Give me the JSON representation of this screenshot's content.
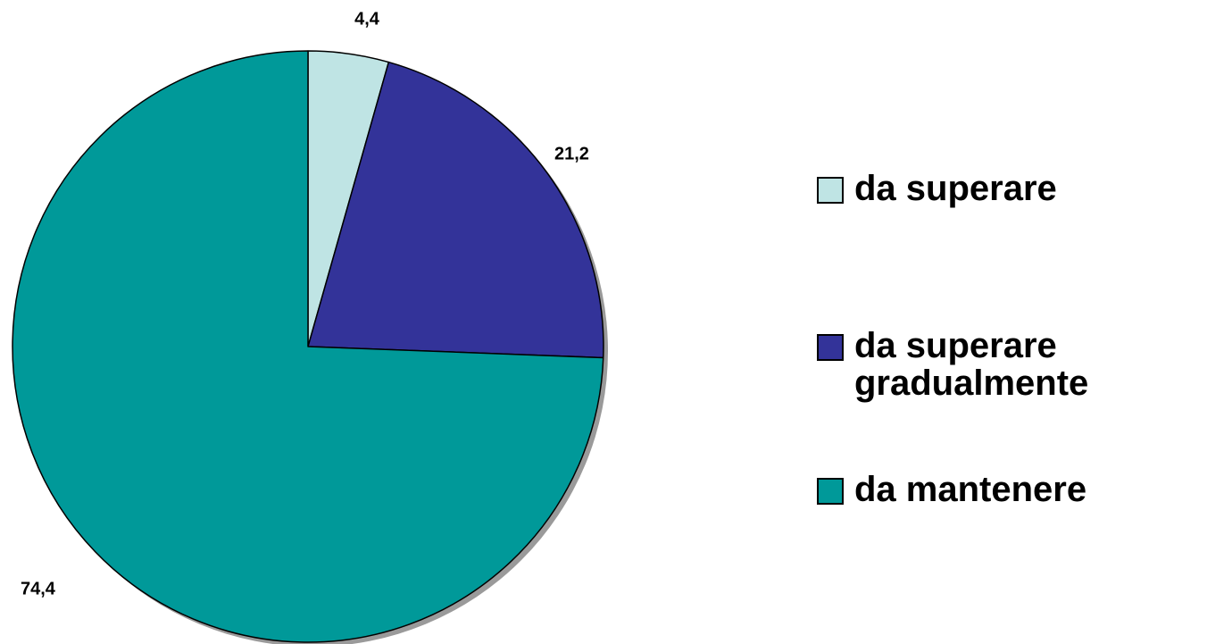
{
  "chart_data": {
    "type": "pie",
    "title": "",
    "slices": [
      {
        "label": "da superare",
        "value": 4.4,
        "value_label": "4,4",
        "color": "#BFE4E4"
      },
      {
        "label": "da superare gradualmente",
        "value": 21.2,
        "value_label": "21,2",
        "color": "#333399"
      },
      {
        "label": "da mantenere",
        "value": 74.4,
        "value_label": "74,4",
        "color": "#009999"
      }
    ],
    "start_angle": "12 o'clock",
    "direction": "clockwise",
    "shadow": true,
    "legend": {
      "position": "right",
      "entries": [
        "da superare",
        "da superare gradualmente",
        "da mantenere"
      ]
    }
  }
}
